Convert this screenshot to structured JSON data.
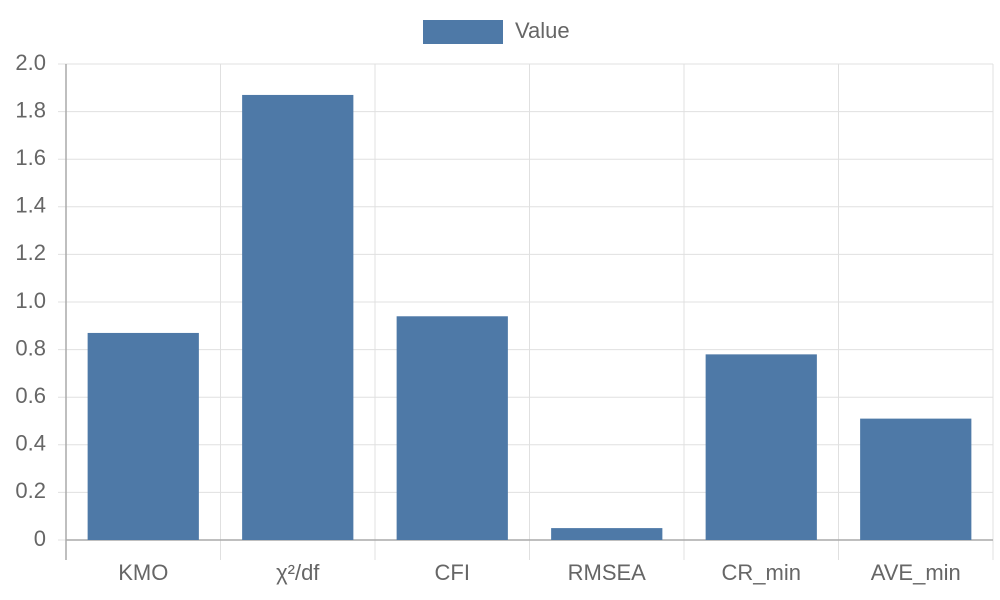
{
  "chart_data": {
    "type": "bar",
    "categories": [
      "KMO",
      "χ²/df",
      "CFI",
      "RMSEA",
      "CR_min",
      "AVE_min"
    ],
    "series": [
      {
        "name": "Value",
        "color": "#4e79a7",
        "values": [
          0.87,
          1.87,
          0.94,
          0.05,
          0.78,
          0.51
        ]
      }
    ],
    "ylim": [
      0,
      2
    ],
    "yticks": [
      0,
      0.2,
      0.4,
      0.6,
      0.8,
      {
        "value": 1,
        "label": "1.0"
      },
      1.2,
      1.4,
      1.6,
      1.8,
      {
        "value": 2,
        "label": "2.0"
      }
    ],
    "grid": true,
    "legend": "top"
  }
}
